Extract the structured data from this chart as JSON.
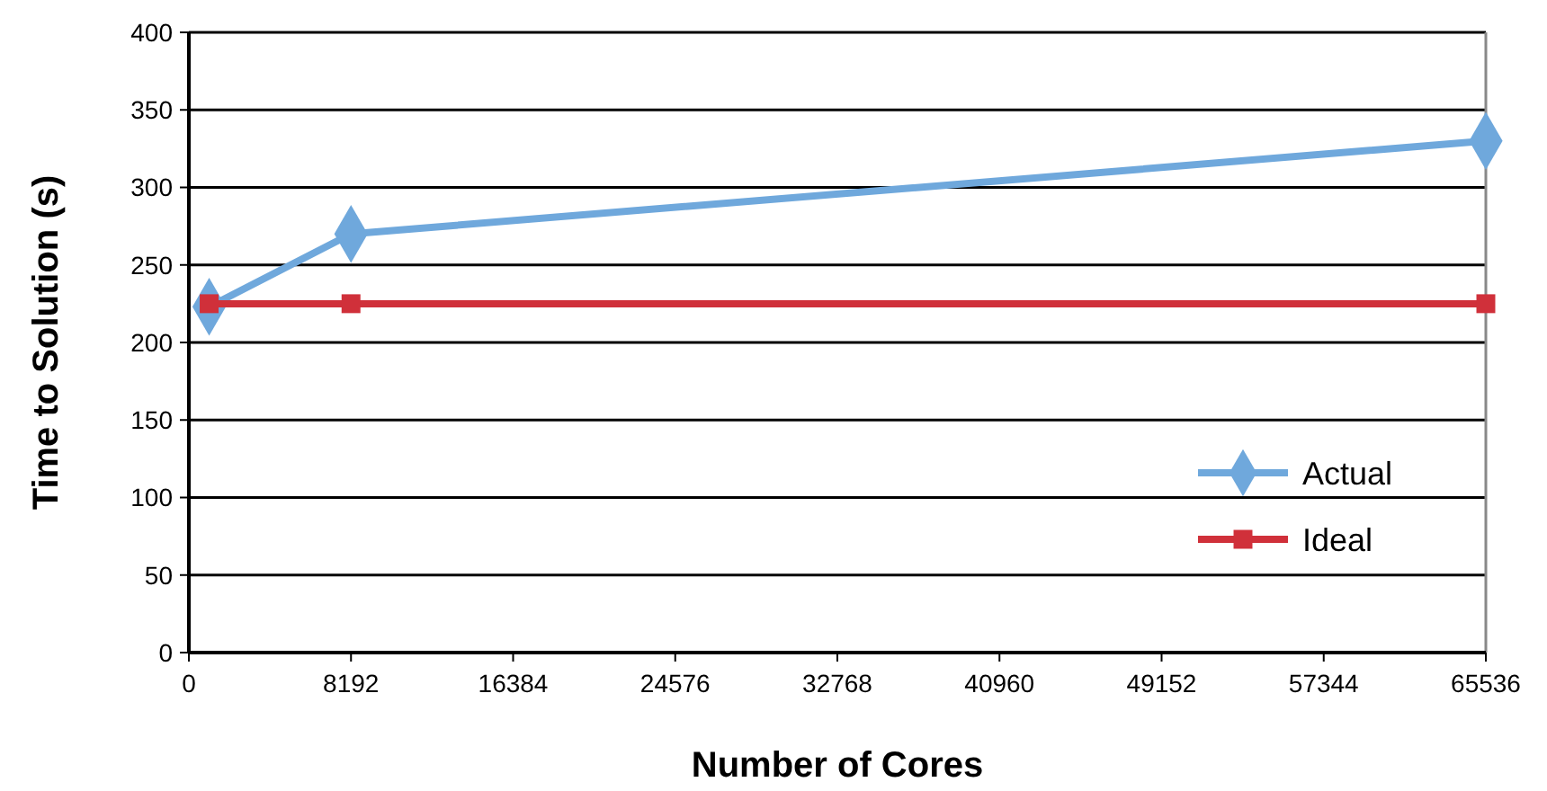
{
  "chart_data": {
    "type": "line",
    "xlabel": "Number of Cores",
    "ylabel": "Time to Solution (s)",
    "x": [
      1024,
      8192,
      65536
    ],
    "xlim": [
      0,
      65536
    ],
    "xticks": [
      0,
      8192,
      16384,
      24576,
      32768,
      40960,
      49152,
      57344,
      65536
    ],
    "ylim": [
      0,
      400
    ],
    "yticks": [
      0,
      50,
      100,
      150,
      200,
      250,
      300,
      350,
      400
    ],
    "grid": "y",
    "legend": "bottom right",
    "series": [
      {
        "name": "Actual",
        "color": "#6fa8dc",
        "values": [
          223,
          270,
          330
        ],
        "marker": "diamond"
      },
      {
        "name": "Ideal",
        "color": "#d0303a",
        "values": [
          225,
          225,
          225
        ],
        "marker": "square"
      }
    ]
  }
}
